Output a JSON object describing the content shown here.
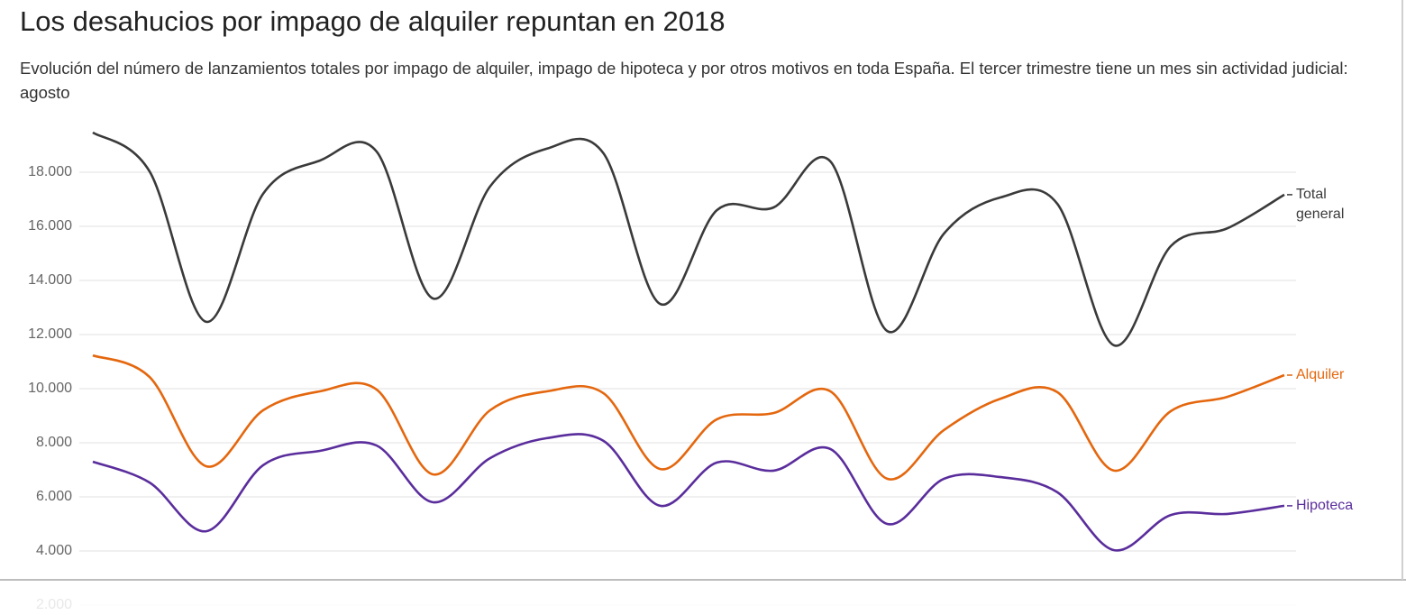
{
  "chart_data": {
    "type": "line",
    "title": "Los desahucios por impago de alquiler repuntan en 2018",
    "subtitle": "Evolución del número de lanzamientos totales por impago de alquiler, impago de hipoteca y por otros motivos en toda España. El tercer trimestre tiene un mes sin actividad judicial: agosto",
    "categories": [
      null,
      null,
      null,
      null,
      null,
      null,
      null,
      null,
      null,
      null,
      null,
      null,
      null,
      null,
      null,
      null,
      null,
      null,
      null,
      null,
      null,
      null
    ],
    "series": [
      {
        "name": "Total general",
        "color": "#3a3a3a",
        "values": [
          19470,
          18030,
          12470,
          17200,
          18430,
          18770,
          13330,
          17470,
          18870,
          18700,
          13130,
          16600,
          16700,
          18400,
          12130,
          15730,
          17070,
          16830,
          11600,
          15270,
          15930,
          17170
        ]
      },
      {
        "name": "Alquiler",
        "color": "#e4670e",
        "values": [
          11230,
          10430,
          7130,
          9200,
          9900,
          9970,
          6830,
          9200,
          9900,
          9830,
          7030,
          8870,
          9100,
          9900,
          6670,
          8470,
          9630,
          9870,
          6970,
          9170,
          9700,
          10500
        ]
      },
      {
        "name": "Hipoteca",
        "color": "#5a2d9c",
        "values": [
          7300,
          6530,
          4730,
          7170,
          7700,
          7900,
          5800,
          7430,
          8170,
          8070,
          5670,
          7270,
          6970,
          7770,
          5000,
          6670,
          6730,
          6170,
          4030,
          5330,
          5370,
          5670
        ]
      }
    ],
    "ylim": [
      2000,
      19700
    ],
    "yticks": [
      {
        "value": 2000,
        "label": "2.000"
      },
      {
        "value": 4000,
        "label": "4.000"
      },
      {
        "value": 6000,
        "label": "6.000"
      },
      {
        "value": 8000,
        "label": "8.000"
      },
      {
        "value": 10000,
        "label": "10.000"
      },
      {
        "value": 12000,
        "label": "12.000"
      },
      {
        "value": 14000,
        "label": "14.000"
      },
      {
        "value": 16000,
        "label": "16.000"
      },
      {
        "value": 18000,
        "label": "18.000"
      }
    ],
    "grid": true
  }
}
